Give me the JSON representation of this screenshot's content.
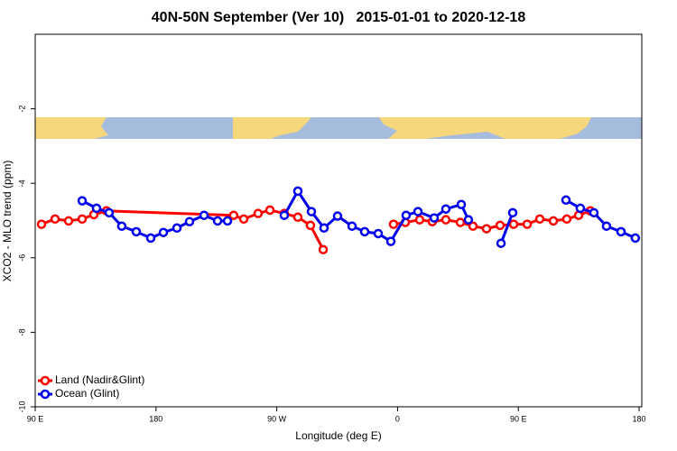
{
  "chart_data": {
    "type": "line",
    "title": "40N-50N September (Ver 10)   2015-01-01 to 2020-12-18",
    "x_label": "Longitude (deg E)",
    "y_label": "XCO2 - MLO trend (ppm)",
    "xlim": [
      90,
      542
    ],
    "ylim": [
      -10,
      0
    ],
    "xticks": [
      {
        "value": 90,
        "label": "90 E"
      },
      180,
      {
        "value": 270,
        "label": "90 W"
      },
      {
        "value": 360,
        "label": "0"
      },
      {
        "value": 450,
        "label": "90 E"
      },
      {
        "value": 540,
        "label": "180"
      }
    ],
    "yticks": [
      -10,
      -8,
      -6,
      -4,
      -2
    ],
    "legend": "lower left",
    "series": [
      {
        "name": "Land (Nadir&Glint)",
        "color": "#ff0000",
        "x": [
          94.7,
          104.8,
          114.9,
          125.0,
          133.7,
          143.1,
          237.9,
          245.4,
          256.1,
          264.9,
          275.6,
          285.7,
          295.1,
          304.6,
          null,
          357.0,
          365.8,
          376.5,
          385.9,
          396.0,
          406.8,
          416.2,
          426.3,
          436.4,
          446.5,
          456.6,
          466.0,
          476.1,
          486.1,
          494.9,
          503.6
        ],
        "values": [
          -5.1,
          -4.96,
          -5.01,
          -4.96,
          -4.84,
          -4.74,
          -4.86,
          -4.96,
          -4.81,
          -4.72,
          -4.81,
          -4.91,
          -5.13,
          -5.78,
          null,
          -5.1,
          -5.05,
          -4.98,
          -5.03,
          -4.98,
          -5.05,
          -5.15,
          -5.22,
          -5.13,
          -5.1,
          -5.1,
          -4.96,
          -5.01,
          -4.96,
          -4.86,
          -4.74
        ]
      },
      {
        "name": "Ocean (Glint)",
        "color": "#0000ee",
        "x": [
          125.0,
          135.7,
          145.1,
          154.5,
          165.3,
          176.1,
          185.5,
          195.6,
          205.0,
          215.8,
          225.9,
          233.3,
          null,
          275.6,
          285.7,
          295.8,
          305.2,
          315.3,
          326.1,
          335.5,
          345.6,
          355.0,
          366.4,
          375.2,
          387.3,
          396.0,
          407.5,
          412.8,
          null,
          437.1,
          445.8,
          null,
          485.5,
          496.2,
          506.3,
          515.7,
          526.5,
          537.2
        ],
        "values": [
          -4.47,
          -4.67,
          -4.79,
          -5.15,
          -5.3,
          -5.47,
          -5.32,
          -5.2,
          -5.03,
          -4.86,
          -5.01,
          -5.01,
          null,
          -4.86,
          -4.21,
          -4.76,
          -5.2,
          -4.88,
          -5.15,
          -5.3,
          -5.35,
          -5.56,
          -4.86,
          -4.76,
          -4.93,
          -4.69,
          -4.57,
          -4.98,
          null,
          -5.61,
          -4.79,
          null,
          -4.45,
          -4.67,
          -4.79,
          -5.15,
          -5.3,
          -5.47
        ]
      }
    ]
  }
}
